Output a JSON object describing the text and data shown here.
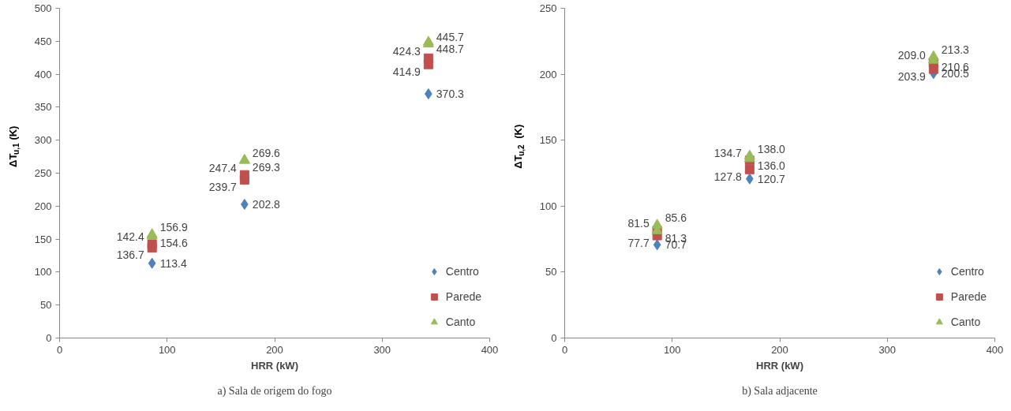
{
  "chart_data": [
    {
      "type": "scatter",
      "xlabel": "HRR (kW)",
      "ylabel": "ΔT$_{u,1}$(K)",
      "xlim": [
        0,
        400
      ],
      "xticks": [
        0,
        100,
        200,
        300,
        400
      ],
      "ylim": [
        0,
        500
      ],
      "yticks": [
        0,
        50,
        100,
        150,
        200,
        250,
        300,
        350,
        400,
        450,
        500
      ],
      "grid": false,
      "legend": "bottom right",
      "data_labels": true,
      "annotations": [
        "a) Sala de origem do fogo"
      ],
      "series": [
        {
          "name": "Centro",
          "color": "#4f81bd",
          "marker": "diamond",
          "x": [
            86,
            172,
            343
          ],
          "values": [
            113.4,
            202.8,
            370.3
          ],
          "value_labels": [
            "113.4",
            "202.8",
            "370.3"
          ]
        },
        {
          "name": "Parede",
          "color": "#c0504d",
          "marker": "square",
          "x": [
            86,
            86,
            172,
            172,
            343,
            343
          ],
          "values": [
            136.7,
            142.4,
            239.7,
            247.4,
            414.9,
            424.3
          ],
          "value_labels": [
            "136.7",
            "142.4",
            "239.7",
            "247.4",
            "414.9",
            "424.3"
          ]
        },
        {
          "name": "Canto",
          "color": "#9bbb59",
          "marker": "triangle",
          "x": [
            86,
            86,
            172,
            172,
            343,
            343
          ],
          "values": [
            154.6,
            156.9,
            269.3,
            269.6,
            445.7,
            448.7
          ],
          "value_labels": [
            "154.6",
            "156.9",
            "269.3",
            "269.6",
            "445.7",
            "448.7"
          ]
        }
      ]
    },
    {
      "type": "scatter",
      "xlabel": "HRR (kW)",
      "ylabel": "ΔT$_{u,2}$ (K)",
      "xlim": [
        0,
        400
      ],
      "xticks": [
        0,
        100,
        200,
        300,
        400
      ],
      "ylim": [
        0,
        250
      ],
      "yticks": [
        0,
        50,
        100,
        150,
        200,
        250
      ],
      "grid": false,
      "legend": "bottom right",
      "data_labels": true,
      "annotations": [
        "b) Sala adjacente"
      ],
      "series": [
        {
          "name": "Centro",
          "color": "#4f81bd",
          "marker": "diamond",
          "x": [
            86,
            172,
            343
          ],
          "values": [
            70.7,
            120.7,
            200.5
          ],
          "value_labels": [
            "70.7",
            "120.7",
            "200.5"
          ]
        },
        {
          "name": "Parede",
          "color": "#c0504d",
          "marker": "square",
          "x": [
            86,
            86,
            172,
            172,
            343,
            343
          ],
          "values": [
            77.7,
            81.5,
            127.8,
            134.7,
            203.9,
            209.0
          ],
          "value_labels": [
            "77.7",
            "81.5",
            "127.8",
            "134.7",
            "203.9",
            "209.0"
          ]
        },
        {
          "name": "Canto",
          "color": "#9bbb59",
          "marker": "triangle",
          "x": [
            86,
            86,
            172,
            172,
            343,
            343
          ],
          "values": [
            81.3,
            85.6,
            136.0,
            138.0,
            210.6,
            213.3
          ],
          "value_labels": [
            "81.3",
            "85.6",
            "136.0",
            "138.0",
            "210.6",
            "213.3"
          ]
        }
      ]
    }
  ]
}
